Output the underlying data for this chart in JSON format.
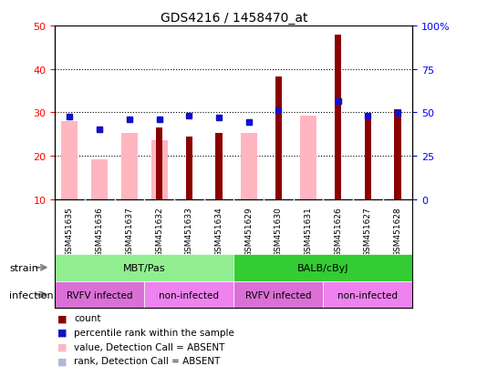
{
  "title": "GDS4216 / 1458470_at",
  "samples": [
    "GSM451635",
    "GSM451636",
    "GSM451637",
    "GSM451632",
    "GSM451633",
    "GSM451634",
    "GSM451629",
    "GSM451630",
    "GSM451631",
    "GSM451626",
    "GSM451627",
    "GSM451628"
  ],
  "count_values": [
    null,
    null,
    null,
    26.5,
    24.5,
    25.2,
    null,
    38.3,
    null,
    48.0,
    29.2,
    30.8
  ],
  "rank_values": [
    29.0,
    26.2,
    28.5,
    28.5,
    29.2,
    28.8,
    27.8,
    30.5,
    null,
    32.5,
    29.2,
    29.8
  ],
  "absent_value": [
    28.0,
    19.2,
    25.2,
    23.5,
    null,
    null,
    25.2,
    null,
    29.2,
    null,
    null,
    null
  ],
  "absent_rank": [
    29.0,
    26.2,
    28.5,
    28.5,
    null,
    null,
    27.8,
    null,
    null,
    null,
    null,
    null
  ],
  "ylim_left": [
    10,
    50
  ],
  "ylim_right": [
    0,
    100
  ],
  "yticks_left": [
    10,
    20,
    30,
    40,
    50
  ],
  "yticks_right": [
    0,
    25,
    50,
    75,
    100
  ],
  "ytick_labels_right": [
    "0",
    "25",
    "50",
    "75",
    "100%"
  ],
  "strain_labels": [
    [
      "MBT/Pas",
      0,
      5
    ],
    [
      "BALB/cByJ",
      6,
      11
    ]
  ],
  "infection_labels": [
    [
      "RVFV infected",
      0,
      2,
      "rvfv"
    ],
    [
      "non-infected",
      3,
      5,
      "non"
    ],
    [
      "RVFV infected",
      6,
      8,
      "rvfv"
    ],
    [
      "non-infected",
      9,
      11,
      "non"
    ]
  ],
  "color_count": "#8B0000",
  "color_rank": "#1010CC",
  "color_absent_value": "#FFB6C1",
  "color_absent_rank": "#B0B8D8",
  "color_strain_green_light": "#90EE90",
  "color_strain_green_dark": "#32CD32",
  "color_infection_rvfv": "#DA70D6",
  "color_infection_non": "#EE82EE",
  "color_xticklabel_bg": "#C8C8C8",
  "absent_bar_width": 0.55,
  "count_bar_width": 0.22,
  "rank_marker_size": 5
}
